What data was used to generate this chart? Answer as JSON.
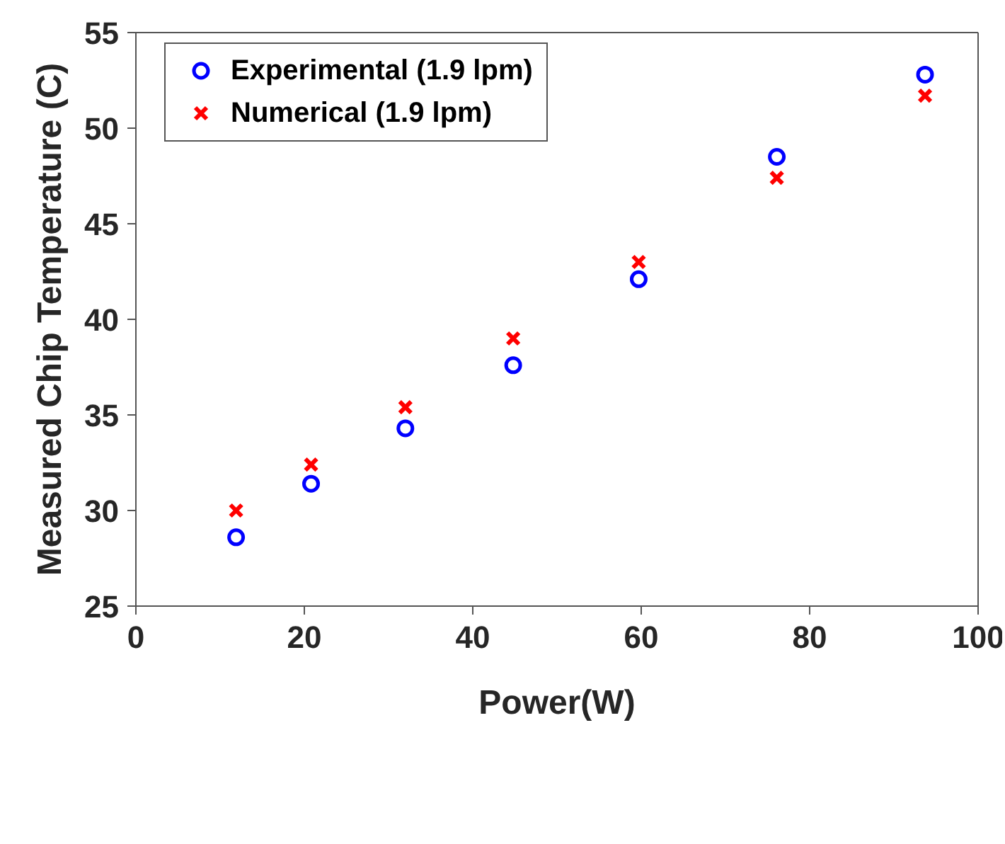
{
  "chart_data": {
    "type": "scatter",
    "xlabel": "Power(W)",
    "ylabel": "Measured Chip Temperature (C)",
    "xlim": [
      0,
      100
    ],
    "xticks": [
      0,
      20,
      40,
      60,
      80,
      100
    ],
    "ylim": [
      25,
      55
    ],
    "yticks": [
      25,
      30,
      35,
      40,
      45,
      50,
      55
    ],
    "legend": "top left",
    "series": [
      {
        "name": "Experimental (1.9 lpm)",
        "color": "#0000ff",
        "marker": "circle",
        "x": [
          11.9,
          20.8,
          32.0,
          44.8,
          59.7,
          76.1,
          93.7
        ],
        "values": [
          28.6,
          31.4,
          34.3,
          37.6,
          42.1,
          48.5,
          52.8
        ]
      },
      {
        "name": "Numerical (1.9 lpm)",
        "color": "#ff0000",
        "marker": "cross",
        "x": [
          11.9,
          20.8,
          32.0,
          44.8,
          59.7,
          76.1,
          93.7
        ],
        "values": [
          30.0,
          32.4,
          35.4,
          39.0,
          43.0,
          47.4,
          51.7
        ]
      }
    ]
  }
}
